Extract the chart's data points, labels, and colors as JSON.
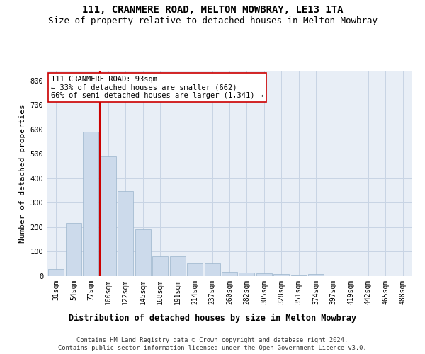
{
  "title": "111, CRANMERE ROAD, MELTON MOWBRAY, LE13 1TA",
  "subtitle": "Size of property relative to detached houses in Melton Mowbray",
  "xlabel": "Distribution of detached houses by size in Melton Mowbray",
  "ylabel": "Number of detached properties",
  "categories": [
    "31sqm",
    "54sqm",
    "77sqm",
    "100sqm",
    "122sqm",
    "145sqm",
    "168sqm",
    "191sqm",
    "214sqm",
    "237sqm",
    "260sqm",
    "282sqm",
    "305sqm",
    "328sqm",
    "351sqm",
    "374sqm",
    "397sqm",
    "419sqm",
    "442sqm",
    "465sqm",
    "488sqm"
  ],
  "values": [
    30,
    218,
    590,
    490,
    348,
    190,
    82,
    82,
    52,
    52,
    17,
    15,
    12,
    8,
    3,
    8,
    0,
    0,
    0,
    0,
    0
  ],
  "bar_color": "#ccdaeb",
  "bar_edge_color": "#9ab4cc",
  "vline_x": 2.5,
  "vline_color": "#cc0000",
  "annotation_text": "111 CRANMERE ROAD: 93sqm\n← 33% of detached houses are smaller (662)\n66% of semi-detached houses are larger (1,341) →",
  "annotation_box_facecolor": "#ffffff",
  "annotation_box_edgecolor": "#cc0000",
  "ylim": [
    0,
    840
  ],
  "yticks": [
    0,
    100,
    200,
    300,
    400,
    500,
    600,
    700,
    800
  ],
  "grid_color": "#c8d4e4",
  "bg_color": "#e8eef6",
  "footer1": "Contains HM Land Registry data © Crown copyright and database right 2024.",
  "footer2": "Contains public sector information licensed under the Open Government Licence v3.0.",
  "title_fontsize": 10,
  "subtitle_fontsize": 9,
  "tick_fontsize": 7,
  "ylabel_fontsize": 8,
  "xlabel_fontsize": 8.5,
  "annot_fontsize": 7.5
}
